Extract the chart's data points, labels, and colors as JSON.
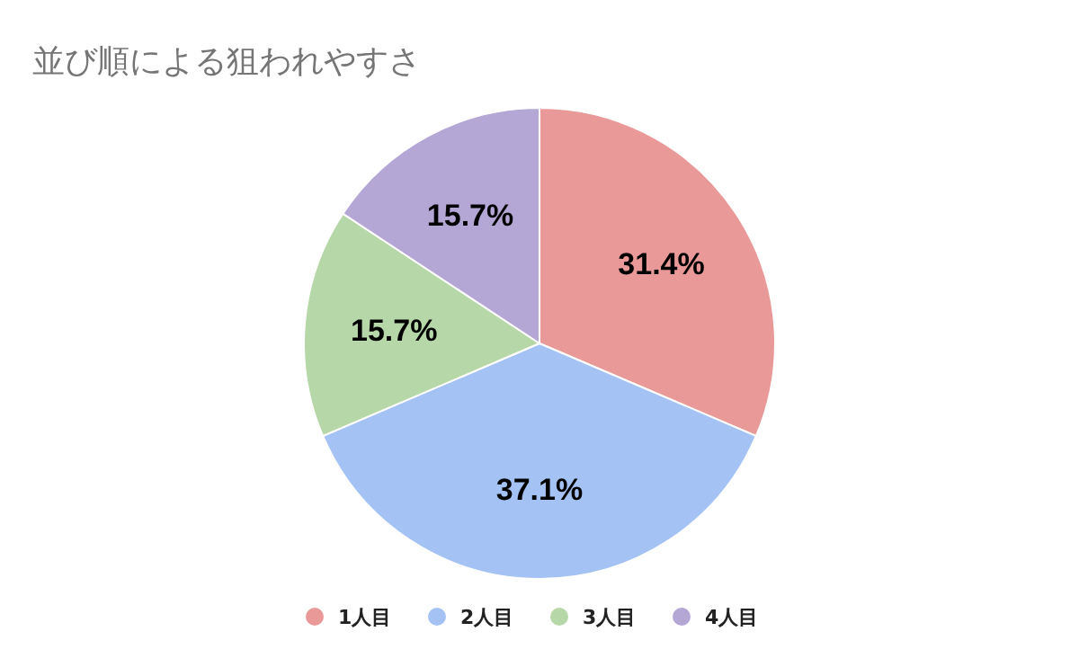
{
  "chart_data": {
    "type": "pie",
    "title": "並び順による狙われやすさ",
    "categories": [
      "1人目",
      "2人目",
      "3人目",
      "4人目"
    ],
    "values": [
      31.4,
      37.1,
      15.7,
      15.7
    ],
    "colors": [
      "#ea9999",
      "#a4c2f4",
      "#b6d7a8",
      "#b4a7d6"
    ],
    "value_labels": [
      "31.4%",
      "37.1%",
      "15.7%",
      "15.7%"
    ],
    "legend": "bottom"
  }
}
